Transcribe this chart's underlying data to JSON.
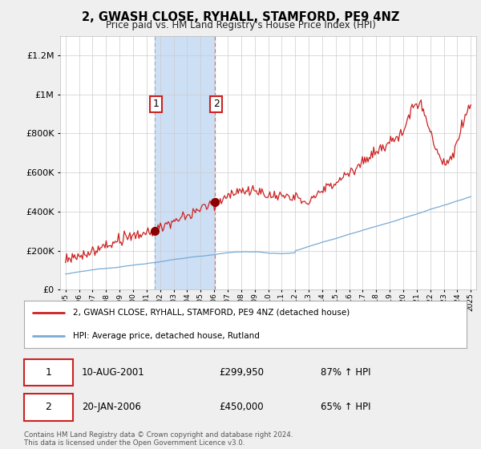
{
  "title": "2, GWASH CLOSE, RYHALL, STAMFORD, PE9 4NZ",
  "subtitle": "Price paid vs. HM Land Registry's House Price Index (HPI)",
  "legend_entry1": "2, GWASH CLOSE, RYHALL, STAMFORD, PE9 4NZ (detached house)",
  "legend_entry2": "HPI: Average price, detached house, Rutland",
  "transaction1_date": "10-AUG-2001",
  "transaction1_price": "£299,950",
  "transaction1_hpi": "87% ↑ HPI",
  "transaction2_date": "20-JAN-2006",
  "transaction2_price": "£450,000",
  "transaction2_hpi": "65% ↑ HPI",
  "footer": "Contains HM Land Registry data © Crown copyright and database right 2024.\nThis data is licensed under the Open Government Licence v3.0.",
  "hpi_color": "#7aaad4",
  "price_color": "#cc2222",
  "background_color": "#efefef",
  "plot_bg_color": "#ffffff",
  "highlight_color": "#ccdff5",
  "ylim": [
    0,
    1300000
  ],
  "yticks": [
    0,
    200000,
    400000,
    600000,
    800000,
    1000000,
    1200000
  ],
  "transaction1_x": 2001.6,
  "transaction1_y": 299950,
  "transaction2_x": 2006.05,
  "transaction2_y": 450000,
  "xmin": 1995,
  "xmax": 2025
}
